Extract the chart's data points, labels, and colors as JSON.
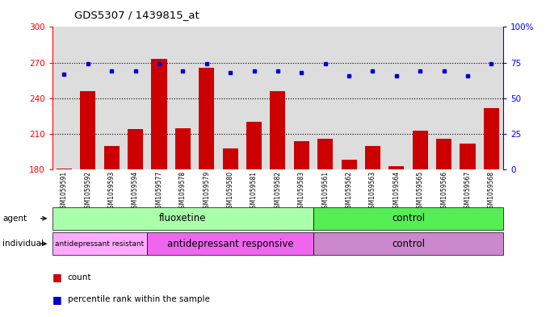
{
  "title": "GDS5307 / 1439815_at",
  "samples": [
    "GSM1059591",
    "GSM1059592",
    "GSM1059593",
    "GSM1059594",
    "GSM1059577",
    "GSM1059578",
    "GSM1059579",
    "GSM1059580",
    "GSM1059581",
    "GSM1059582",
    "GSM1059583",
    "GSM1059561",
    "GSM1059562",
    "GSM1059563",
    "GSM1059564",
    "GSM1059565",
    "GSM1059566",
    "GSM1059567",
    "GSM1059568"
  ],
  "counts": [
    181,
    246,
    200,
    214,
    273,
    215,
    266,
    198,
    220,
    246,
    204,
    206,
    188,
    200,
    183,
    213,
    206,
    202,
    232
  ],
  "percentile_ranks": [
    67,
    74,
    69,
    69,
    74,
    69,
    74,
    68,
    69,
    69,
    68,
    74,
    66,
    69,
    66,
    69,
    69,
    66,
    74
  ],
  "ylim_left": [
    180,
    300
  ],
  "ylim_right": [
    0,
    100
  ],
  "yticks_left": [
    180,
    210,
    240,
    270,
    300
  ],
  "yticks_right": [
    0,
    25,
    50,
    75,
    100
  ],
  "bar_color": "#cc0000",
  "dot_color": "#0000cc",
  "agent_groups": [
    {
      "label": "fluoxetine",
      "start": 0,
      "end": 10,
      "color": "#aaffaa"
    },
    {
      "label": "control",
      "start": 11,
      "end": 18,
      "color": "#55ee55"
    }
  ],
  "individual_groups": [
    {
      "label": "antidepressant resistant",
      "start": 0,
      "end": 3,
      "color": "#ffaaff"
    },
    {
      "label": "antidepressant responsive",
      "start": 4,
      "end": 10,
      "color": "#ee66ee"
    },
    {
      "label": "control",
      "start": 11,
      "end": 18,
      "color": "#cc88cc"
    }
  ],
  "background_color": "#ffffff",
  "plot_bg_color": "#dddddd",
  "fig_width": 6.81,
  "fig_height": 3.93,
  "dpi": 100
}
